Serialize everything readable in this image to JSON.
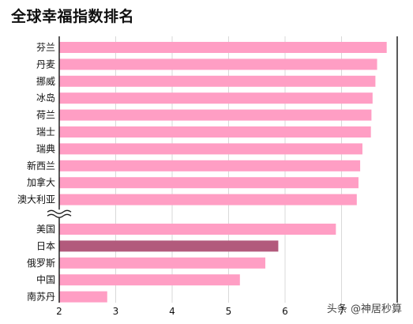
{
  "chart_data": {
    "type": "bar",
    "orientation": "horizontal",
    "title": "全球幸福指数排名",
    "categories": [
      "芬兰",
      "丹麦",
      "挪威",
      "冰岛",
      "荷兰",
      "瑞士",
      "瑞典",
      "新西兰",
      "加拿大",
      "澳大利亚",
      "美国",
      "日本",
      "俄罗斯",
      "中国",
      "南苏丹"
    ],
    "values": [
      7.8,
      7.63,
      7.6,
      7.55,
      7.53,
      7.52,
      7.37,
      7.33,
      7.3,
      7.27,
      6.9,
      5.88,
      5.65,
      5.2,
      2.85
    ],
    "highlight": "日本",
    "axis_break_after": "澳大利亚",
    "xlim": [
      2,
      8
    ],
    "xticks": [
      2,
      3,
      4,
      5,
      6,
      7
    ],
    "grid": true,
    "colors": {
      "bar": "#ff9ec4",
      "highlight": "#b25a7c",
      "grid": "#d9d9d9",
      "axis": "#222222"
    }
  },
  "watermark": "头条 @神居秒算"
}
